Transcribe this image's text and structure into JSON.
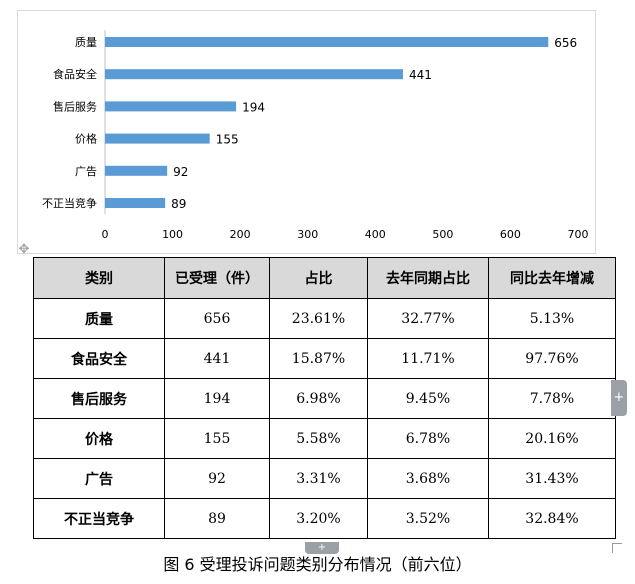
{
  "chart_data": {
    "type": "bar",
    "orientation": "horizontal",
    "categories": [
      "质量",
      "食品安全",
      "售后服务",
      "价格",
      "广告",
      "不正当竞争"
    ],
    "values": [
      656,
      441,
      194,
      155,
      92,
      89
    ],
    "xlim": [
      0,
      700
    ],
    "x_ticks": [
      0,
      100,
      200,
      300,
      400,
      500,
      600,
      700
    ],
    "bar_color": "#5b9bd5",
    "grid": false,
    "legend": "none",
    "data_labels": true
  },
  "table": {
    "headers": [
      "类别",
      "已受理（件）",
      "占比",
      "去年同期占比",
      "同比去年增减"
    ],
    "rows": [
      [
        "质量",
        "656",
        "23.61%",
        "32.77%",
        "5.13%"
      ],
      [
        "食品安全",
        "441",
        "15.87%",
        "11.71%",
        "97.76%"
      ],
      [
        "售后服务",
        "194",
        "6.98%",
        "9.45%",
        "7.78%"
      ],
      [
        "价格",
        "155",
        "5.58%",
        "6.78%",
        "20.16%"
      ],
      [
        "广告",
        "92",
        "3.31%",
        "3.68%",
        "31.43%"
      ],
      [
        "不正当竞争",
        "89",
        "3.20%",
        "3.52%",
        "32.84%"
      ]
    ]
  },
  "caption": "图 6  受理投诉问题类别分布情况（前六位）",
  "ui": {
    "move_handle_icon": "move-icon",
    "side_tab_icon": "plus-icon",
    "bottom_tab_icon": "plus-icon"
  }
}
